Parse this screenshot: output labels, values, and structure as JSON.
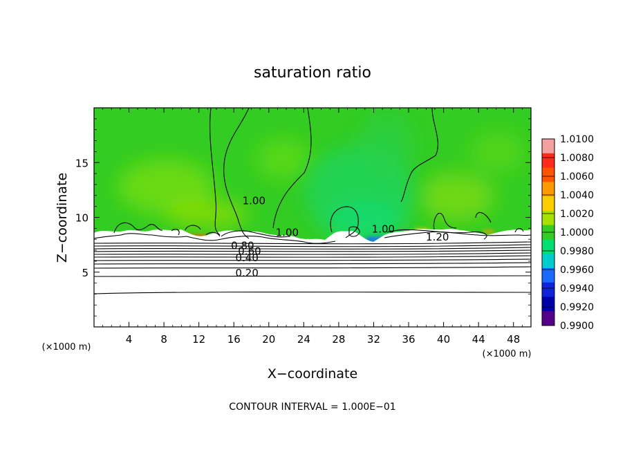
{
  "chart_data": {
    "type": "heatmap",
    "title": "saturation ratio",
    "xlabel": "X−coordinate",
    "ylabel": "Z−coordinate",
    "x_unit": "(×1000 m)",
    "z_unit": "(×1000 m)",
    "xlim": [
      0,
      50
    ],
    "ylim": [
      0,
      20
    ],
    "x_ticks": [
      "4",
      "8",
      "12",
      "16",
      "20",
      "24",
      "28",
      "32",
      "36",
      "40",
      "44",
      "48"
    ],
    "y_ticks": [
      "5",
      "10",
      "15"
    ],
    "footer": "CONTOUR INTERVAL = 1.000E−01",
    "colorbar": {
      "labels": [
        "1.0100",
        "1.0080",
        "1.0060",
        "1.0040",
        "1.0020",
        "1.0000",
        "0.9980",
        "0.9960",
        "0.9940",
        "0.9920",
        "0.9900"
      ],
      "colors": [
        "#f4a0a0",
        "#ff2a1a",
        "#ff5500",
        "#ff9900",
        "#ffcc00",
        "#a8e000",
        "#33cc22",
        "#00e070",
        "#00cccc",
        "#1a6aff",
        "#1122dd",
        "#0000aa",
        "#550088"
      ]
    },
    "contour_labels": [
      {
        "text": "1.00",
        "x": 18.3,
        "z": 11.2
      },
      {
        "text": "1.00",
        "x": 22.1,
        "z": 8.3
      },
      {
        "text": "1.20",
        "x": 39.3,
        "z": 7.9
      },
      {
        "text": "1.00",
        "x": 33.1,
        "z": 8.6
      },
      {
        "text": "0.80",
        "x": 17.0,
        "z": 7.1
      },
      {
        "text": "0.60",
        "x": 17.8,
        "z": 6.6
      },
      {
        "text": "0.40",
        "x": 17.5,
        "z": 6.0
      },
      {
        "text": "0.20",
        "x": 17.5,
        "z": 4.6
      }
    ]
  }
}
